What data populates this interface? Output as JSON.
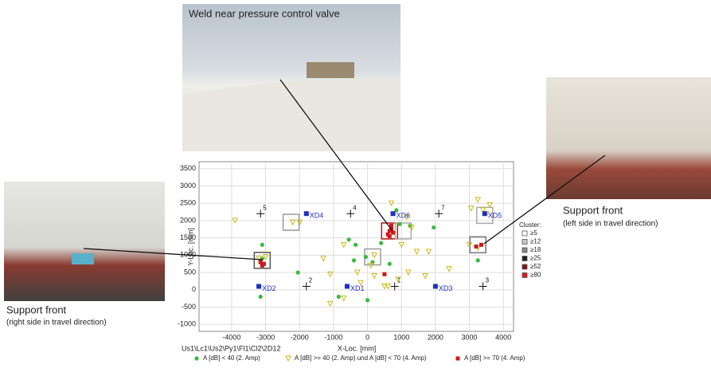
{
  "chart_data": {
    "type": "scatter",
    "xlabel": "X-Loc. [mm]",
    "ylabel": "Y-Loc. [mm]",
    "footnote": "Us1\\Lc1\\Us2\\Py1\\Fl1\\Cl2\\2D12",
    "xlim": [
      -4960,
      4300
    ],
    "ylim": [
      -1200,
      3700
    ],
    "xticks": [
      -4000,
      -3000,
      -2000,
      -1000,
      0,
      1000,
      2000,
      3000,
      4000
    ],
    "yticks": [
      -1000,
      -500,
      0,
      500,
      1000,
      1500,
      2000,
      2500,
      3000,
      3500
    ],
    "grid": true,
    "series": [
      {
        "name": "A [dB] < 40 (2. Amp)",
        "color": "#3cb93c",
        "marker": "circle",
        "x": [
          -3100,
          -3150,
          -2050,
          -550,
          -350,
          -50,
          150,
          650,
          0,
          -850,
          950,
          1250,
          1950,
          850,
          3250,
          -3100,
          400,
          -400
        ],
        "y": [
          1300,
          -200,
          500,
          1450,
          1300,
          950,
          800,
          750,
          -300,
          -200,
          1900,
          1850,
          1800,
          2300,
          850,
          900,
          1350,
          850
        ]
      },
      {
        "name": "A [dB] >= 40 (2. Amp) und A [dB] < 70 (4. Amp)",
        "color": "#e0d020",
        "marker": "triangle",
        "x": [
          -3900,
          -2200,
          -2000,
          -1300,
          -1100,
          -700,
          -1100,
          -300,
          -200,
          100,
          200,
          500,
          600,
          900,
          1200,
          1000,
          1450,
          2400,
          1800,
          700,
          1150,
          1300,
          3050,
          3250,
          3400,
          3500,
          3600,
          3000,
          3250,
          -3000,
          -3200,
          200,
          -700,
          1700
        ],
        "y": [
          2000,
          1950,
          1950,
          900,
          -400,
          -250,
          450,
          500,
          200,
          700,
          400,
          100,
          100,
          300,
          500,
          1300,
          1100,
          600,
          1100,
          2500,
          2100,
          1800,
          2350,
          2600,
          2300,
          2200,
          2450,
          1300,
          1200,
          950,
          900,
          1000,
          1300,
          400
        ]
      },
      {
        "name": "A [dB] >= 70 (4. Amp)",
        "color": "#d01818",
        "marker": "square",
        "x": [
          600,
          650,
          700,
          750,
          650,
          700,
          -3150,
          -3050,
          -3100,
          3200,
          3350,
          500
        ],
        "y": [
          1600,
          1700,
          1750,
          1650,
          1550,
          1850,
          800,
          750,
          700,
          1250,
          1300,
          450
        ]
      }
    ],
    "sensors": {
      "color": "#2030c0",
      "labels": [
        "XD1",
        "XD2",
        "XD3",
        "XD4",
        "XD5",
        "XD6"
      ],
      "x": [
        -600,
        -3200,
        2000,
        -1800,
        3450,
        750
      ],
      "y": [
        100,
        100,
        100,
        2200,
        2200,
        2200
      ]
    },
    "positions": {
      "labels": [
        "1",
        "2",
        "3",
        "4",
        "5",
        "7"
      ],
      "x": [
        800,
        -1800,
        3400,
        -500,
        -3150,
        2100
      ],
      "y": [
        100,
        100,
        100,
        2200,
        2200,
        2200
      ]
    },
    "clusters": {
      "x": [
        -3100,
        -2250,
        150,
        650,
        1050,
        3450,
        3250
      ],
      "y": [
        850,
        1950,
        950,
        1700,
        1700,
        2150,
        1300
      ],
      "colors": [
        "#555555",
        "#999999",
        "#999999",
        "#c01010",
        "#aaaaaa",
        "#aaaaaa",
        "#777777"
      ]
    },
    "cluster_legend": {
      "title": "Cluster:",
      "labels": [
        "≥5",
        "≥12",
        "≥18",
        "≥25",
        "≥52",
        "≥80"
      ],
      "colors": [
        "#ffffff",
        "#c8c8c8",
        "#888888",
        "#202020",
        "#801010",
        "#e01818"
      ]
    },
    "photos": [
      {
        "caption": "Weld near pressure control valve"
      },
      {
        "caption": "Support front",
        "subcaption": "(left side in travel direction)"
      },
      {
        "caption": "Support front",
        "subcaption": "(right side in travel direction)"
      }
    ]
  }
}
